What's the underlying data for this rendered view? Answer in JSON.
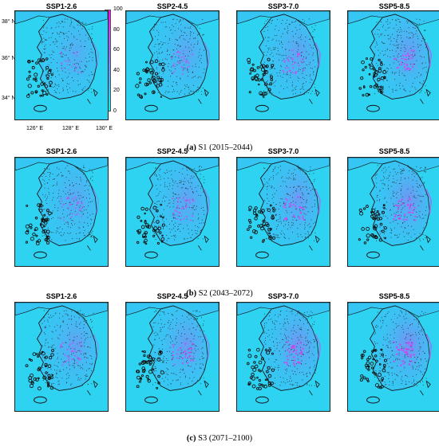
{
  "scenarios": [
    "SSP1-2.6",
    "SSP2-4.5",
    "SSP3-7.0",
    "SSP5-8.5"
  ],
  "rows": [
    {
      "caption_letter": "(a)",
      "caption_text": "S1 (2015–2044)"
    },
    {
      "caption_letter": "(b)",
      "caption_text": "S2 (2043–2072)"
    },
    {
      "caption_letter": "(c)",
      "caption_text": "S3 (2071–2100)"
    }
  ],
  "lat_labels": [
    "38° N",
    "36° N",
    "34° N"
  ],
  "lon_labels": [
    "126° E",
    "128° E",
    "130° E"
  ],
  "colorbar": {
    "ticks": [
      "100",
      "80",
      "60",
      "40",
      "20",
      "0"
    ],
    "colors": [
      "#00f5f0",
      "#33c5f5",
      "#6699f5",
      "#9966f0",
      "#cc44ee",
      "#ff00ee"
    ]
  },
  "colors": {
    "sea": "#2fd3f2",
    "land": "#36c6f3",
    "outline": "#111111",
    "hotspot": "#dd3cf0"
  }
}
